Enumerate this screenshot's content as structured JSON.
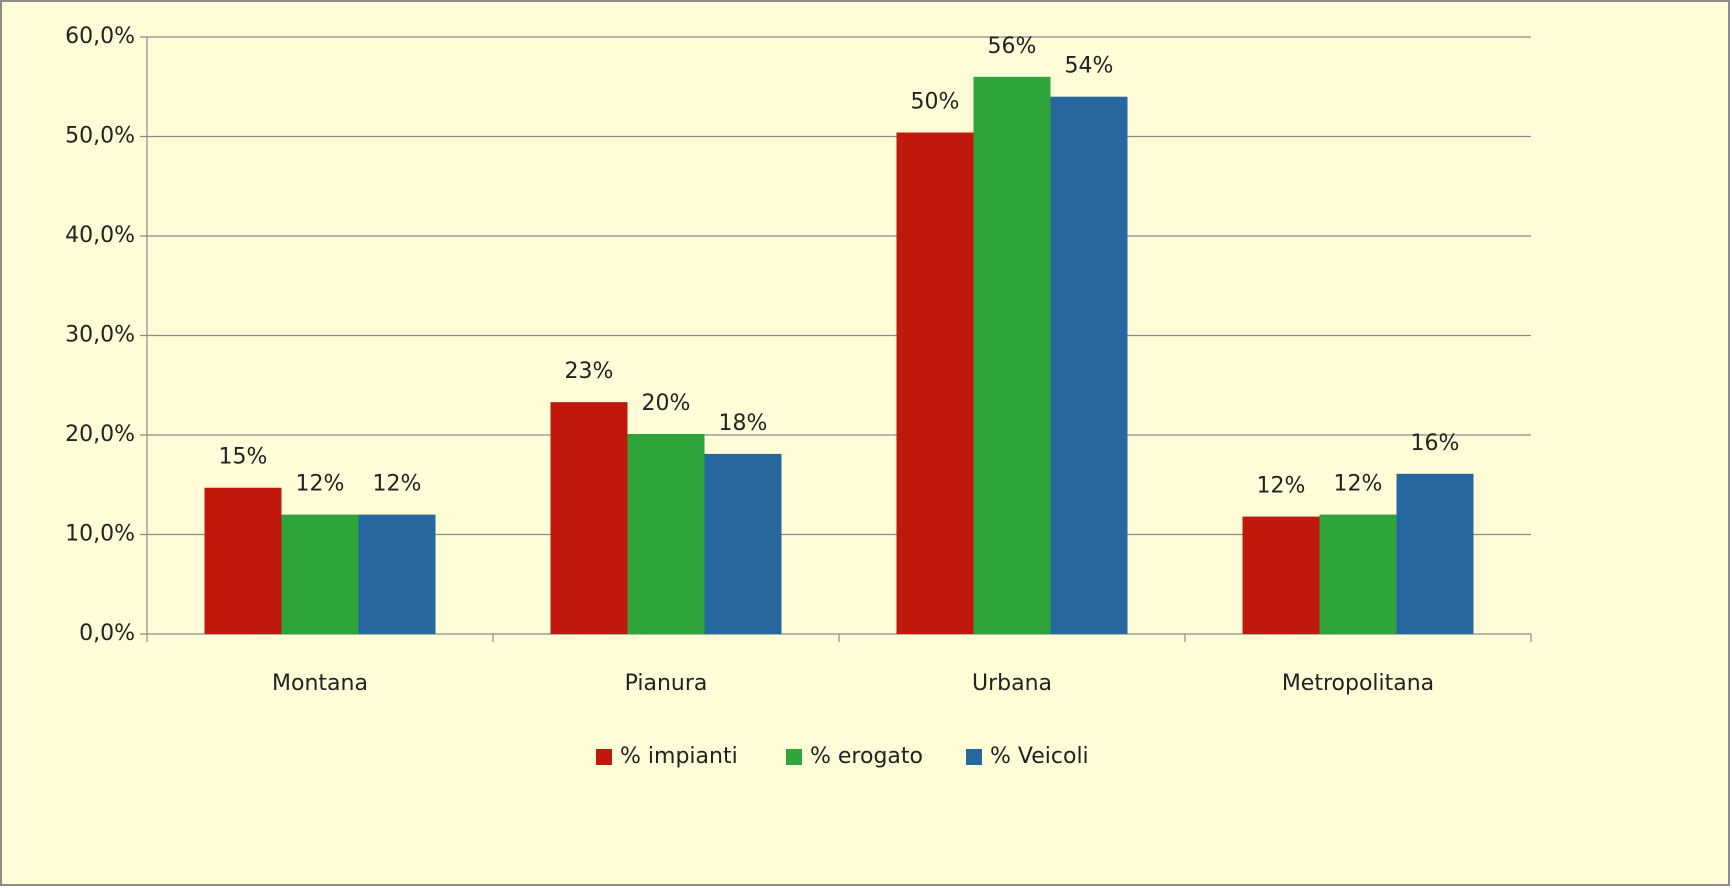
{
  "chart_data": {
    "type": "bar",
    "categories": [
      "Montana",
      "Pianura",
      "Urbana",
      "Metropolitana"
    ],
    "series": [
      {
        "name": "% impianti",
        "color": "#c0190c",
        "values": [
          14.7,
          23.3,
          50.4,
          11.8
        ],
        "value_labels": [
          "15%",
          "23%",
          "50%",
          "12%"
        ]
      },
      {
        "name": "% erogato",
        "color": "#2ea43a",
        "values": [
          12.0,
          20.1,
          56.0,
          12.0
        ],
        "value_labels": [
          "12%",
          "20%",
          "56%",
          "12%"
        ]
      },
      {
        "name": "% Veicoli",
        "color": "#2667a0",
        "values": [
          12.0,
          18.1,
          54.0,
          16.1
        ],
        "value_labels": [
          "12%",
          "18%",
          "54%",
          "16%"
        ]
      }
    ],
    "ylim": [
      0,
      60
    ],
    "yticks": [
      {
        "value": 0,
        "label": "0,0%"
      },
      {
        "value": 10,
        "label": "10,0%"
      },
      {
        "value": 20,
        "label": "20,0%"
      },
      {
        "value": 30,
        "label": "30,0%"
      },
      {
        "value": 40,
        "label": "40,0%"
      },
      {
        "value": 50,
        "label": "50,0%"
      },
      {
        "value": 60,
        "label": "60,0%"
      }
    ],
    "grid": true,
    "legend": "bottom"
  }
}
